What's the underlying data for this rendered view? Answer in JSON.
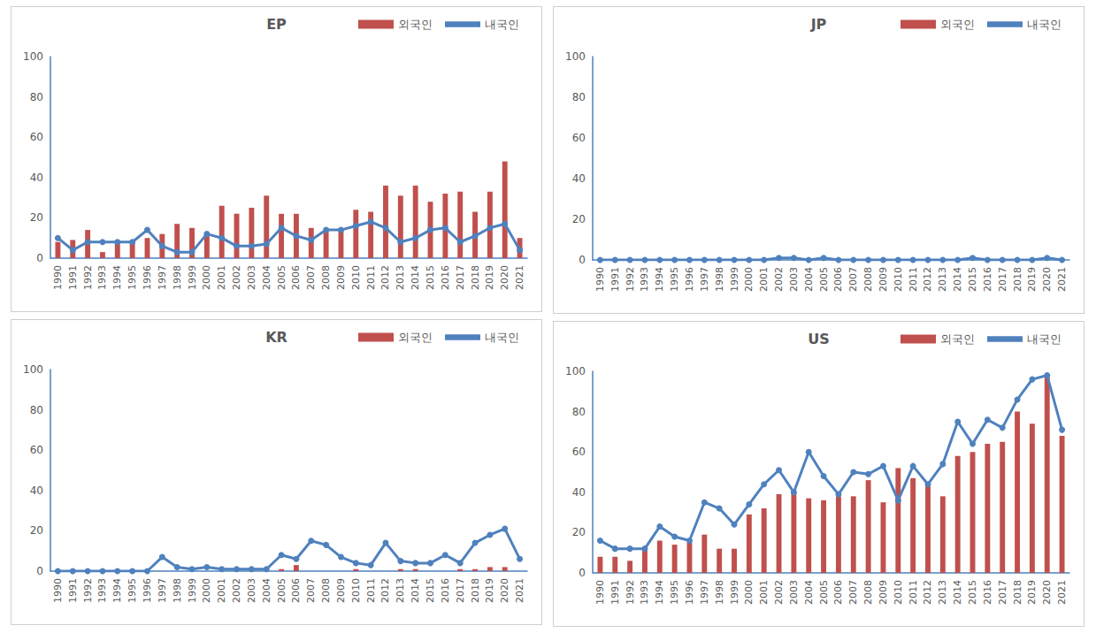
{
  "chart_data": [
    {
      "type": "bar",
      "title": "EP",
      "categories": [
        "1990",
        "1991",
        "1992",
        "1993",
        "1994",
        "1995",
        "1996",
        "1997",
        "1998",
        "1999",
        "2000",
        "2001",
        "2002",
        "2003",
        "2004",
        "2005",
        "2006",
        "2007",
        "2008",
        "2009",
        "2010",
        "2011",
        "2012",
        "2013",
        "2014",
        "2015",
        "2016",
        "2017",
        "2018",
        "2019",
        "2020",
        "2021"
      ],
      "series": [
        {
          "name": "외국인",
          "type": "bar",
          "color": "#c0504d",
          "values": [
            8,
            9,
            14,
            3,
            8,
            8,
            10,
            12,
            17,
            15,
            12,
            26,
            22,
            25,
            31,
            22,
            22,
            15,
            14,
            14,
            24,
            23,
            36,
            31,
            36,
            28,
            32,
            33,
            23,
            33,
            48,
            10
          ]
        },
        {
          "name": "내국인",
          "type": "line",
          "color": "#4f81bd",
          "marker": "circle",
          "values": [
            10,
            4,
            8,
            8,
            8,
            8,
            14,
            6,
            3,
            3,
            12,
            10,
            6,
            6,
            7,
            15,
            11,
            9,
            14,
            14,
            16,
            18,
            15,
            8,
            10,
            14,
            15,
            8,
            11,
            15,
            17,
            4
          ]
        }
      ],
      "ylim": [
        0,
        100
      ],
      "yticks": [
        0,
        20,
        40,
        60,
        80,
        100
      ],
      "grid": false,
      "legend": "top-right"
    },
    {
      "type": "bar",
      "title": "JP",
      "categories": [
        "1990",
        "1991",
        "1992",
        "1993",
        "1994",
        "1995",
        "1996",
        "1997",
        "1998",
        "1999",
        "2000",
        "2001",
        "2002",
        "2003",
        "2004",
        "2005",
        "2006",
        "2007",
        "2008",
        "2009",
        "2010",
        "2011",
        "2012",
        "2013",
        "2014",
        "2015",
        "2016",
        "2017",
        "2018",
        "2019",
        "2020",
        "2021"
      ],
      "series": [
        {
          "name": "외국인",
          "type": "bar",
          "color": "#c0504d",
          "values": [
            0,
            0,
            0,
            0,
            0,
            0,
            0,
            0,
            0,
            0,
            0,
            0,
            0,
            0,
            0,
            0,
            0,
            0,
            0,
            0,
            0,
            0,
            0,
            0,
            0,
            0,
            0,
            0,
            0,
            0,
            0,
            0
          ]
        },
        {
          "name": "내국인",
          "type": "line",
          "color": "#4f81bd",
          "marker": "circle",
          "values": [
            0,
            0,
            0,
            0,
            0,
            0,
            0,
            0,
            0,
            0,
            0,
            0,
            1,
            1,
            0,
            1,
            0,
            0,
            0,
            0,
            0,
            0,
            0,
            0,
            0,
            1,
            0,
            0,
            0,
            0,
            1,
            0
          ]
        }
      ],
      "ylim": [
        0,
        100
      ],
      "yticks": [
        0,
        20,
        40,
        60,
        80,
        100
      ],
      "grid": false,
      "legend": "top-right"
    },
    {
      "type": "bar",
      "title": "KR",
      "categories": [
        "1990",
        "1991",
        "1992",
        "1993",
        "1994",
        "1995",
        "1996",
        "1997",
        "1998",
        "1999",
        "2000",
        "2001",
        "2002",
        "2003",
        "2004",
        "2005",
        "2006",
        "2007",
        "2008",
        "2009",
        "2010",
        "2011",
        "2012",
        "2013",
        "2014",
        "2015",
        "2016",
        "2017",
        "2018",
        "2019",
        "2020",
        "2021"
      ],
      "series": [
        {
          "name": "외국인",
          "type": "bar",
          "color": "#c0504d",
          "values": [
            0,
            0,
            0,
            0,
            0,
            0,
            0,
            0,
            0,
            0,
            0,
            0,
            0,
            0,
            0,
            1,
            3,
            0,
            0,
            0,
            1,
            0,
            0,
            1,
            1,
            0,
            0,
            1,
            1,
            2,
            2,
            0
          ]
        },
        {
          "name": "내국인",
          "type": "line",
          "color": "#4f81bd",
          "marker": "circle",
          "values": [
            0,
            0,
            0,
            0,
            0,
            0,
            0,
            7,
            2,
            1,
            2,
            1,
            1,
            1,
            1,
            8,
            6,
            15,
            13,
            7,
            4,
            3,
            14,
            5,
            4,
            4,
            8,
            4,
            14,
            18,
            21,
            6
          ]
        }
      ],
      "ylim": [
        0,
        100
      ],
      "yticks": [
        0,
        20,
        40,
        60,
        80,
        100
      ],
      "grid": false,
      "legend": "top-right"
    },
    {
      "type": "bar",
      "title": "US",
      "categories": [
        "1990",
        "1991",
        "1992",
        "1993",
        "1994",
        "1995",
        "1996",
        "1997",
        "1998",
        "1999",
        "2000",
        "2001",
        "2002",
        "2003",
        "2004",
        "2005",
        "2006",
        "2007",
        "2008",
        "2009",
        "2010",
        "2011",
        "2012",
        "2013",
        "2014",
        "2015",
        "2016",
        "2017",
        "2018",
        "2019",
        "2020",
        "2021"
      ],
      "series": [
        {
          "name": "외국인",
          "type": "bar",
          "color": "#c0504d",
          "values": [
            8,
            8,
            6,
            11,
            16,
            14,
            15,
            19,
            12,
            12,
            29,
            32,
            39,
            40,
            37,
            36,
            38,
            38,
            46,
            35,
            52,
            47,
            43,
            38,
            58,
            60,
            64,
            65,
            80,
            74,
            98,
            68
          ]
        },
        {
          "name": "내국인",
          "type": "line",
          "color": "#4f81bd",
          "marker": "circle",
          "values": [
            16,
            12,
            12,
            12,
            23,
            18,
            16,
            35,
            32,
            24,
            34,
            44,
            51,
            40,
            60,
            48,
            39,
            50,
            49,
            53,
            36,
            53,
            44,
            54,
            75,
            64,
            76,
            72,
            86,
            96,
            98,
            71
          ]
        }
      ],
      "ylim": [
        0,
        100
      ],
      "yticks": [
        0,
        20,
        40,
        60,
        80,
        100
      ],
      "grid": false,
      "legend": "top-right"
    }
  ]
}
